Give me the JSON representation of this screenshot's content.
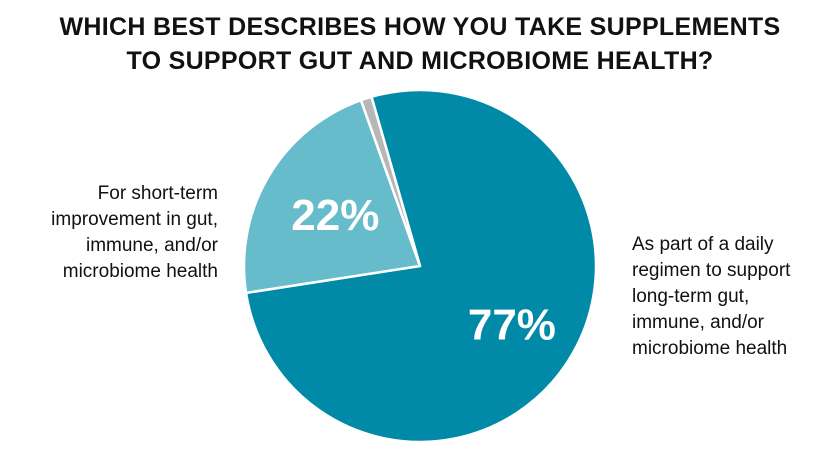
{
  "chart_data": {
    "type": "pie",
    "title_lines": [
      "WHICH BEST DESCRIBES HOW YOU TAKE SUPPLEMENTS",
      "TO SUPPORT GUT AND MICROBIOME HEALTH?"
    ],
    "slices": [
      {
        "label_lines": [
          "As part of a daily",
          "regimen to support",
          "long-term gut,",
          "immune, and/or",
          "microbiome health"
        ],
        "value": 77,
        "value_label": "77%",
        "color": "#008aa8"
      },
      {
        "label_lines": [
          "For short-term",
          "improvement in gut,",
          "immune, and/or",
          "microbiome health"
        ],
        "value": 22,
        "value_label": "22%",
        "color": "#67bccc"
      },
      {
        "value": 1,
        "color": "#b7b7b7"
      }
    ]
  }
}
